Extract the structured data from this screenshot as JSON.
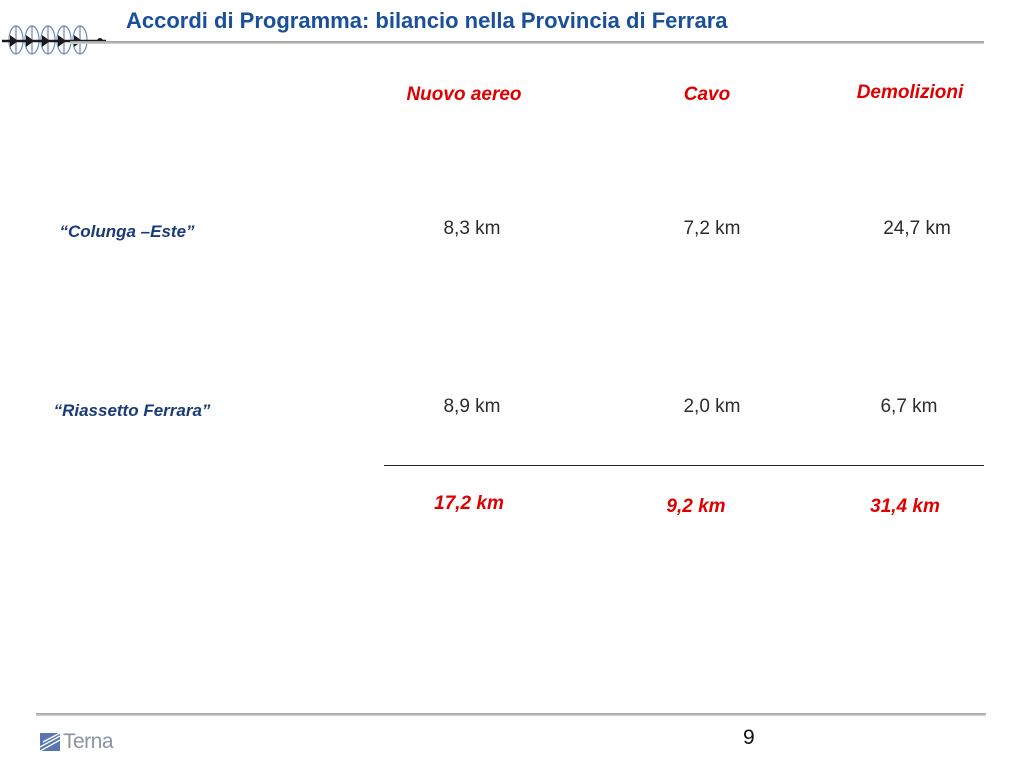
{
  "header": {
    "title": "Accordi di Programma: bilancio nella Provincia di Ferrara",
    "logo_icon": "power-line-towers-icon"
  },
  "table": {
    "columns": [
      "Nuovo aereo",
      "Cavo",
      "Demolizioni"
    ],
    "rows": [
      {
        "label": "“Colunga –Este”",
        "values": [
          "8,3 km",
          "7,2 km",
          "24,7 km"
        ]
      },
      {
        "label": "“Riassetto Ferrara”",
        "values": [
          "8,9 km",
          "2,0 km",
          "6,7 km"
        ]
      }
    ],
    "totals": [
      "17,2 km",
      "9,2 km",
      "31,4 km"
    ]
  },
  "footer": {
    "brand": "Terna",
    "brand_icon": "terna-logo-icon",
    "page_number": "9"
  },
  "colors": {
    "title": "#1a4f9a",
    "header_red": "#e00000",
    "row_label": "#1a3a78",
    "brand_grey": "#8a94a2"
  }
}
